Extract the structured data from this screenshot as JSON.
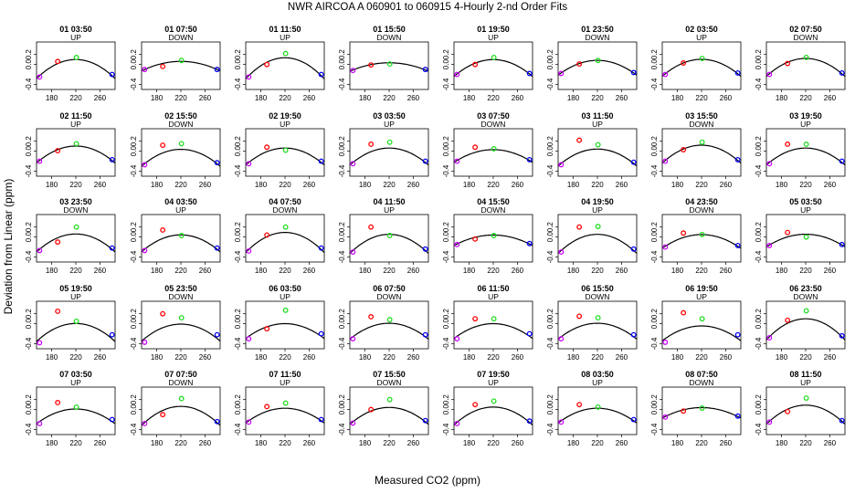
{
  "figure": {
    "title": "NWR   AIRCOA A   060901 to 060915   4-Hourly 2-nd Order Fits",
    "xlabel": "Measured CO2 (ppm)",
    "ylabel": "Deviation from Linear (ppm)"
  },
  "chart_data": {
    "type": "scatter",
    "layout": "grid 5x8 small multiples",
    "xlim": [
      155,
      285
    ],
    "ylim": [
      -0.5,
      0.45
    ],
    "xticks": [
      180,
      220,
      260
    ],
    "yticks": [
      -0.4,
      0.0,
      0.2
    ],
    "ytick_labels": [
      "-0.4",
      "0.0",
      "0.2"
    ],
    "grid": false,
    "legend": "none",
    "colors": {
      "purple": "#cc00ff",
      "red": "#ff0000",
      "green": "#22dd22",
      "blue": "#0000ff",
      "curve": "#000000"
    },
    "panels": [
      {
        "t": "01 03:50",
        "d": "UP",
        "a": 0.09,
        "p": [
          [
            160,
            -0.25
          ],
          [
            190,
            0.06
          ],
          [
            221,
            0.14
          ],
          [
            280,
            -0.2
          ]
        ]
      },
      {
        "t": "01 07:50",
        "d": "DOWN",
        "a": 0.045,
        "p": [
          [
            160,
            -0.1
          ],
          [
            190,
            -0.04
          ],
          [
            221,
            0.08
          ],
          [
            280,
            -0.1
          ]
        ]
      },
      {
        "t": "01 11:50",
        "d": "UP",
        "a": 0.1,
        "p": [
          [
            160,
            -0.25
          ],
          [
            190,
            0.0
          ],
          [
            221,
            0.22
          ],
          [
            280,
            -0.2
          ]
        ]
      },
      {
        "t": "01 15:50",
        "d": "DOWN",
        "a": 0.04,
        "p": [
          [
            160,
            -0.12
          ],
          [
            190,
            -0.01
          ],
          [
            221,
            0.01
          ],
          [
            280,
            -0.1
          ]
        ]
      },
      {
        "t": "01 19:50",
        "d": "UP",
        "a": 0.08,
        "p": [
          [
            160,
            -0.2
          ],
          [
            190,
            0.0
          ],
          [
            221,
            0.14
          ],
          [
            280,
            -0.18
          ]
        ]
      },
      {
        "t": "01 23:50",
        "d": "DOWN",
        "a": 0.07,
        "p": [
          [
            160,
            -0.18
          ],
          [
            190,
            0.01
          ],
          [
            221,
            0.08
          ],
          [
            280,
            -0.16
          ]
        ]
      },
      {
        "t": "02 03:50",
        "d": "UP",
        "a": 0.08,
        "p": [
          [
            160,
            -0.2
          ],
          [
            190,
            0.03
          ],
          [
            221,
            0.12
          ],
          [
            280,
            -0.17
          ]
        ]
      },
      {
        "t": "02 07:50",
        "d": "DOWN",
        "a": 0.085,
        "p": [
          [
            160,
            -0.2
          ],
          [
            190,
            0.02
          ],
          [
            221,
            0.14
          ],
          [
            280,
            -0.17
          ]
        ]
      },
      {
        "t": "02 11:50",
        "d": "UP",
        "a": 0.08,
        "p": [
          [
            160,
            -0.2
          ],
          [
            190,
            0.01
          ],
          [
            221,
            0.15
          ],
          [
            280,
            -0.17
          ]
        ]
      },
      {
        "t": "02 15:50",
        "d": "DOWN",
        "a": 0.08,
        "p": [
          [
            160,
            -0.27
          ],
          [
            190,
            0.12
          ],
          [
            221,
            0.15
          ],
          [
            280,
            -0.23
          ]
        ]
      },
      {
        "t": "02 19:50",
        "d": "UP",
        "a": 0.08,
        "p": [
          [
            160,
            -0.25
          ],
          [
            190,
            0.08
          ],
          [
            221,
            0.02
          ],
          [
            280,
            -0.2
          ]
        ]
      },
      {
        "t": "03 03:50",
        "d": "UP",
        "a": 0.08,
        "p": [
          [
            160,
            -0.25
          ],
          [
            190,
            0.14
          ],
          [
            221,
            0.18
          ],
          [
            280,
            -0.2
          ]
        ]
      },
      {
        "t": "03 07:50",
        "d": "DOWN",
        "a": 0.06,
        "p": [
          [
            160,
            -0.2
          ],
          [
            190,
            0.08
          ],
          [
            221,
            0.05
          ],
          [
            280,
            -0.17
          ]
        ]
      },
      {
        "t": "03 11:50",
        "d": "UP",
        "a": 0.08,
        "p": [
          [
            160,
            -0.27
          ],
          [
            190,
            0.22
          ],
          [
            221,
            0.13
          ],
          [
            280,
            -0.22
          ]
        ]
      },
      {
        "t": "03 15:50",
        "d": "DOWN",
        "a": 0.085,
        "p": [
          [
            160,
            -0.2
          ],
          [
            190,
            0.03
          ],
          [
            221,
            0.18
          ],
          [
            280,
            -0.17
          ]
        ]
      },
      {
        "t": "03 19:50",
        "d": "UP",
        "a": 0.08,
        "p": [
          [
            160,
            -0.25
          ],
          [
            190,
            0.14
          ],
          [
            221,
            0.14
          ],
          [
            280,
            -0.2
          ]
        ]
      },
      {
        "t": "03 23:50",
        "d": "DOWN",
        "a": 0.085,
        "p": [
          [
            160,
            -0.27
          ],
          [
            190,
            -0.1
          ],
          [
            221,
            0.2
          ],
          [
            280,
            -0.22
          ]
        ]
      },
      {
        "t": "04 03:50",
        "d": "UP",
        "a": 0.08,
        "p": [
          [
            160,
            -0.27
          ],
          [
            190,
            0.14
          ],
          [
            221,
            0.03
          ],
          [
            280,
            -0.22
          ]
        ]
      },
      {
        "t": "04 07:50",
        "d": "DOWN",
        "a": 0.095,
        "p": [
          [
            160,
            -0.28
          ],
          [
            190,
            0.04
          ],
          [
            221,
            0.2
          ],
          [
            280,
            -0.22
          ]
        ]
      },
      {
        "t": "04 11:50",
        "d": "UP",
        "a": 0.09,
        "p": [
          [
            160,
            -0.3
          ],
          [
            190,
            0.2
          ],
          [
            221,
            0.03
          ],
          [
            280,
            -0.24
          ]
        ]
      },
      {
        "t": "04 15:50",
        "d": "DOWN",
        "a": 0.05,
        "p": [
          [
            160,
            -0.15
          ],
          [
            190,
            -0.04
          ],
          [
            221,
            0.03
          ],
          [
            280,
            -0.13
          ]
        ]
      },
      {
        "t": "04 19:50",
        "d": "UP",
        "a": 0.09,
        "p": [
          [
            160,
            -0.3
          ],
          [
            190,
            0.2
          ],
          [
            221,
            0.21
          ],
          [
            280,
            -0.24
          ]
        ]
      },
      {
        "t": "04 23:50",
        "d": "DOWN",
        "a": 0.065,
        "p": [
          [
            160,
            -0.2
          ],
          [
            190,
            0.08
          ],
          [
            221,
            0.05
          ],
          [
            280,
            -0.17
          ]
        ]
      },
      {
        "t": "05 03:50",
        "d": "UP",
        "a": 0.06,
        "p": [
          [
            160,
            -0.17
          ],
          [
            190,
            0.09
          ],
          [
            221,
            0.0
          ],
          [
            280,
            -0.15
          ]
        ]
      },
      {
        "t": "05 19:50",
        "d": "UP",
        "a": 0.085,
        "p": [
          [
            160,
            -0.38
          ],
          [
            190,
            0.25
          ],
          [
            221,
            0.05
          ],
          [
            280,
            -0.22
          ]
        ]
      },
      {
        "t": "05 23:50",
        "d": "DOWN",
        "a": 0.08,
        "p": [
          [
            160,
            -0.37
          ],
          [
            190,
            0.2
          ],
          [
            221,
            0.12
          ],
          [
            280,
            -0.22
          ]
        ]
      },
      {
        "t": "06 03:50",
        "d": "UP",
        "a": 0.07,
        "p": [
          [
            160,
            -0.3
          ],
          [
            190,
            -0.1
          ],
          [
            221,
            0.27
          ],
          [
            280,
            -0.2
          ]
        ]
      },
      {
        "t": "06 07:50",
        "d": "DOWN",
        "a": 0.075,
        "p": [
          [
            160,
            -0.3
          ],
          [
            190,
            0.14
          ],
          [
            221,
            0.08
          ],
          [
            280,
            -0.22
          ]
        ]
      },
      {
        "t": "06 11:50",
        "d": "UP",
        "a": 0.07,
        "p": [
          [
            160,
            -0.3
          ],
          [
            190,
            0.1
          ],
          [
            221,
            0.1
          ],
          [
            280,
            -0.2
          ]
        ]
      },
      {
        "t": "06 15:50",
        "d": "DOWN",
        "a": 0.075,
        "p": [
          [
            160,
            -0.3
          ],
          [
            190,
            0.15
          ],
          [
            221,
            0.12
          ],
          [
            280,
            -0.22
          ]
        ]
      },
      {
        "t": "06 19:50",
        "d": "UP",
        "a": 0.07,
        "p": [
          [
            160,
            -0.37
          ],
          [
            190,
            0.22
          ],
          [
            221,
            0.1
          ],
          [
            280,
            -0.22
          ]
        ]
      },
      {
        "t": "06 23:50",
        "d": "DOWN",
        "a": 0.1,
        "p": [
          [
            160,
            -0.28
          ],
          [
            190,
            0.07
          ],
          [
            221,
            0.26
          ],
          [
            280,
            -0.24
          ]
        ]
      },
      {
        "t": "07 03:50",
        "d": "UP",
        "a": 0.07,
        "p": [
          [
            160,
            -0.28
          ],
          [
            190,
            0.14
          ],
          [
            221,
            0.05
          ],
          [
            280,
            -0.2
          ]
        ]
      },
      {
        "t": "07 07:50",
        "d": "DOWN",
        "a": 0.09,
        "p": [
          [
            160,
            -0.28
          ],
          [
            190,
            -0.1
          ],
          [
            221,
            0.22
          ],
          [
            280,
            -0.24
          ]
        ]
      },
      {
        "t": "07 11:50",
        "d": "UP",
        "a": 0.07,
        "p": [
          [
            160,
            -0.25
          ],
          [
            190,
            0.06
          ],
          [
            221,
            0.13
          ],
          [
            280,
            -0.2
          ]
        ]
      },
      {
        "t": "07 15:50",
        "d": "DOWN",
        "a": 0.08,
        "p": [
          [
            160,
            -0.27
          ],
          [
            190,
            0.0
          ],
          [
            221,
            0.2
          ],
          [
            280,
            -0.22
          ]
        ]
      },
      {
        "t": "07 19:50",
        "d": "UP",
        "a": 0.085,
        "p": [
          [
            160,
            -0.28
          ],
          [
            190,
            0.1
          ],
          [
            221,
            0.17
          ],
          [
            280,
            -0.23
          ]
        ]
      },
      {
        "t": "08 03:50",
        "d": "UP",
        "a": 0.07,
        "p": [
          [
            160,
            -0.25
          ],
          [
            190,
            0.1
          ],
          [
            221,
            0.05
          ],
          [
            280,
            -0.2
          ]
        ]
      },
      {
        "t": "08 07:50",
        "d": "DOWN",
        "a": 0.05,
        "p": [
          [
            160,
            -0.15
          ],
          [
            190,
            -0.03
          ],
          [
            221,
            0.03
          ],
          [
            280,
            -0.13
          ]
        ]
      },
      {
        "t": "08 11:50",
        "d": "UP",
        "a": 0.09,
        "p": [
          [
            160,
            -0.25
          ],
          [
            190,
            -0.04
          ],
          [
            221,
            0.23
          ],
          [
            280,
            -0.22
          ]
        ]
      }
    ]
  }
}
